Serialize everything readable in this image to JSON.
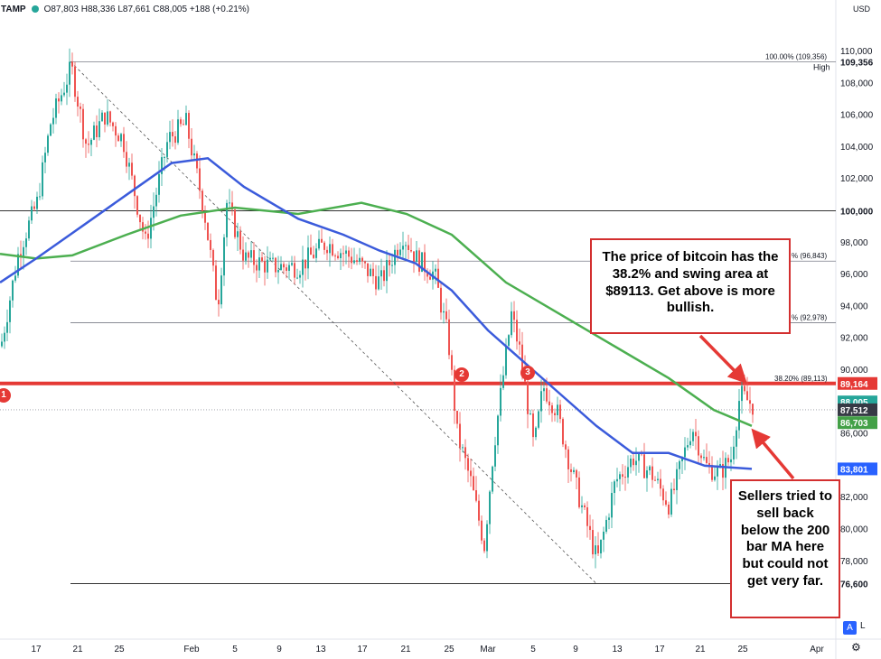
{
  "header": {
    "symbol": "TAMP",
    "ohlc": "O87,803 H88,336 L87,661 C88,005 +188 (+0.21%)",
    "currency": "USD"
  },
  "price_axis": {
    "ticks": [
      "110,000",
      "108,000",
      "106,000",
      "104,000",
      "102,000",
      "98,000",
      "96,000",
      "94,000",
      "92,000",
      "90,000",
      "86,000",
      "82,000",
      "80,000",
      "78,000"
    ],
    "tags": [
      {
        "label": "109,356",
        "color": "#ffffff",
        "text_color": "#131722"
      },
      {
        "label": "100,000",
        "color": "#ffffff",
        "text_color": "#131722"
      },
      {
        "label": "89,164",
        "color": "#e53935",
        "text_color": "#ffffff"
      },
      {
        "label": "88,005",
        "color": "#26a69a",
        "text_color": "#ffffff"
      },
      {
        "label": "87,512",
        "color": "#363a45",
        "text_color": "#ffffff"
      },
      {
        "label": "86,703",
        "color": "#43a047",
        "text_color": "#ffffff"
      },
      {
        "label": "83,801",
        "color": "#2962ff",
        "text_color": "#ffffff"
      },
      {
        "label": "76,600",
        "color": "#ffffff",
        "text_color": "#131722"
      }
    ],
    "high_label": "High"
  },
  "time_axis": {
    "ticks": [
      "17",
      "21",
      "25",
      "Feb",
      "5",
      "9",
      "13",
      "17",
      "21",
      "25",
      "Mar",
      "5",
      "9",
      "13",
      "17",
      "21",
      "25",
      "Apr"
    ]
  },
  "fib_labels": {
    "top": "100.00% (109,356)",
    "r1": "% (96,843)",
    "r2": "% (92,978)",
    "r382": "38.20% (89,113)"
  },
  "markers": [
    "1",
    "2",
    "3"
  ],
  "callouts": {
    "top": "The price of bitcoin has the 38.2% and swing area at $89113.   Get above is more bullish.",
    "bottom": "Sellers tried to sell back below the 200 bar MA here but could not get very far."
  },
  "buttons": {
    "auto": "A",
    "log": "L"
  },
  "colors": {
    "up": "#26a69a",
    "down": "#ef5350",
    "ma100": "#3b5bdb",
    "ma200": "#4caf50",
    "red_line": "#e53935"
  }
}
